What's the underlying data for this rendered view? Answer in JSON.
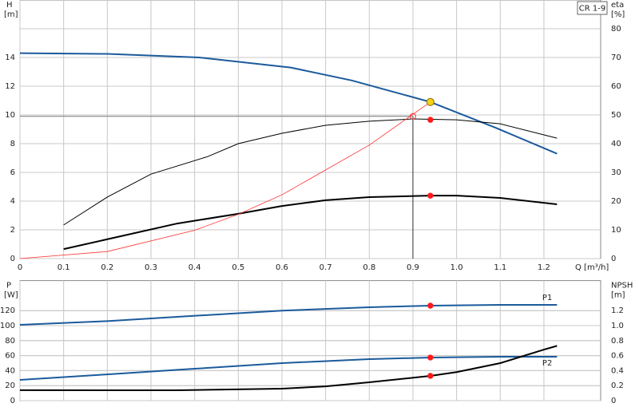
{
  "chart_data": [
    {
      "type": "line",
      "annotation": "CR 1-9",
      "ylabel": "H",
      "yunit": "[m]",
      "y2label": "eta",
      "y2unit": "[%]",
      "xlabel": "Q [m³/h]",
      "xlim": [
        0,
        1.33
      ],
      "xticks": [
        0,
        0.1,
        0.2,
        0.3,
        0.4,
        0.5,
        0.6,
        0.7,
        0.8,
        0.9,
        {
          "value": 1,
          "label": "1.0"
        },
        1.1,
        1.2
      ],
      "xtick_labels": true,
      "ylim": [
        0,
        18
      ],
      "yticks": [
        0,
        2,
        4,
        6,
        8,
        10,
        12,
        14
      ],
      "y2lim": [
        0,
        90
      ],
      "y2ticks": [
        0,
        10,
        20,
        30,
        40,
        50,
        60,
        70,
        80
      ],
      "grid": true,
      "series": [
        {
          "color": "#1b5a9c",
          "axis": "y",
          "x": [
            0,
            0.2,
            0.41,
            0.62,
            0.76,
            0.94,
            1.09,
            1.23
          ],
          "values": [
            14.3,
            14.25,
            14,
            13.3,
            12.4,
            10.9,
            9.1,
            7.3
          ]
        },
        {
          "color": "#000000",
          "axis": "y2",
          "x": [
            0.1,
            0.2,
            0.3,
            0.43,
            0.5,
            0.6,
            0.7,
            0.8,
            0.9,
            1.0,
            1.1,
            1.23
          ],
          "values": [
            11.7,
            21.4,
            29.4,
            35.5,
            40,
            43.6,
            46.4,
            47.8,
            48.6,
            48.3,
            46.9,
            41.9
          ]
        },
        {
          "color": "#000000",
          "axis": "y2",
          "x": [
            0.1,
            0.36,
            0.5,
            0.6,
            0.7,
            0.8,
            0.94,
            1.0,
            1.1,
            1.23
          ],
          "values": [
            3.3,
            12.2,
            15.6,
            18.3,
            20.3,
            21.4,
            21.9,
            21.9,
            21.1,
            18.9
          ]
        },
        {
          "color": "#ff3030",
          "axis": "y",
          "x": [
            0,
            0.2,
            0.4,
            0.5,
            0.6,
            0.8,
            0.94
          ],
          "values": [
            0,
            0.49,
            1.97,
            3.08,
            4.44,
            7.9,
            10.9
          ]
        }
      ],
      "markers": [
        {
          "x": 0.94,
          "y": 10.9,
          "axis": "y",
          "color": "#f7d117"
        },
        {
          "x": 0.94,
          "y": 48.3,
          "axis": "y2",
          "color": "#ff1a1a"
        },
        {
          "x": 0.94,
          "y": 21.9,
          "axis": "y2",
          "color": "#ff1a1a"
        }
      ],
      "reference": {
        "x": 0.9,
        "y": 9.9,
        "color": "#ff3030"
      }
    },
    {
      "type": "line",
      "ylabel": "P",
      "yunit": "[W]",
      "y2label": "NPSH",
      "y2unit": "[m]",
      "xlim": [
        0,
        1.33
      ],
      "xticks": [
        0,
        0.1,
        0.2,
        0.3,
        0.4,
        0.5,
        0.6,
        0.7,
        0.8,
        0.9,
        {
          "value": 1,
          "label": "1.0"
        },
        1.1,
        1.2
      ],
      "xtick_labels": false,
      "ylim": [
        0,
        160
      ],
      "yticks": [
        0,
        20,
        40,
        60,
        80,
        100,
        120
      ],
      "y2lim": [
        0,
        1.6
      ],
      "y2ticks": [
        0,
        0.2,
        0.4,
        0.6,
        0.8,
        {
          "value": 1,
          "label": "1.0"
        },
        1.2
      ],
      "grid": true,
      "series": [
        {
          "name": "P1",
          "color": "#1b5a9c",
          "axis": "y",
          "x": [
            0,
            0.2,
            0.36,
            0.6,
            0.8,
            0.94,
            1.1,
            1.23
          ],
          "values": [
            101,
            106,
            111.7,
            120,
            124.5,
            126.6,
            127.7,
            127.7
          ]
        },
        {
          "name": "P2",
          "color": "#1b5a9c",
          "axis": "y",
          "x": [
            0,
            0.2,
            0.4,
            0.6,
            0.8,
            0.94,
            1.1,
            1.23
          ],
          "values": [
            27.7,
            35,
            42.5,
            50,
            55.3,
            57.4,
            58.5,
            58.5
          ]
        },
        {
          "color": "#000000",
          "axis": "y2",
          "x": [
            0,
            0.36,
            0.6,
            0.7,
            0.8,
            0.94,
            1.0,
            1.1,
            1.2,
            1.23
          ],
          "values": [
            0.14,
            0.138,
            0.16,
            0.19,
            0.245,
            0.33,
            0.38,
            0.5,
            0.68,
            0.73
          ]
        }
      ],
      "markers": [
        {
          "x": 0.94,
          "y": 126.6,
          "axis": "y",
          "color": "#ff1a1a"
        },
        {
          "x": 0.94,
          "y": 57.4,
          "axis": "y",
          "color": "#ff1a1a"
        },
        {
          "x": 0.94,
          "y": 0.33,
          "axis": "y2",
          "color": "#ff1a1a"
        }
      ]
    }
  ]
}
